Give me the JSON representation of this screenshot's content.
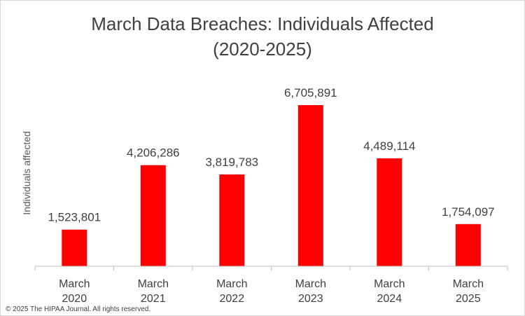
{
  "chart_data": {
    "type": "bar",
    "title_lines": [
      "March Data Breaches: Individuals Affected",
      "(2020-2025)"
    ],
    "ylabel": "Individuals affected",
    "xlabel": "",
    "categories": [
      [
        "March",
        "2020"
      ],
      [
        "March",
        "2021"
      ],
      [
        "March",
        "2022"
      ],
      [
        "March",
        "2023"
      ],
      [
        "March",
        "2024"
      ],
      [
        "March",
        "2025"
      ]
    ],
    "values": [
      1523801,
      4206286,
      3819783,
      6705891,
      4489114,
      1754097
    ],
    "data_labels": [
      "1,523,801",
      "4,206,286",
      "3,819,783",
      "6,705,891",
      "4,489,114",
      "1,754,097"
    ],
    "ylim": [
      0,
      10000000
    ],
    "grid": false,
    "legend": "none",
    "bar_color": "#ff0000",
    "axis_color": "#bfbfbf",
    "text_color": "#404040"
  },
  "footer": {
    "copyright": "© 2025 The HIPAA Journal. All rights reserved."
  }
}
